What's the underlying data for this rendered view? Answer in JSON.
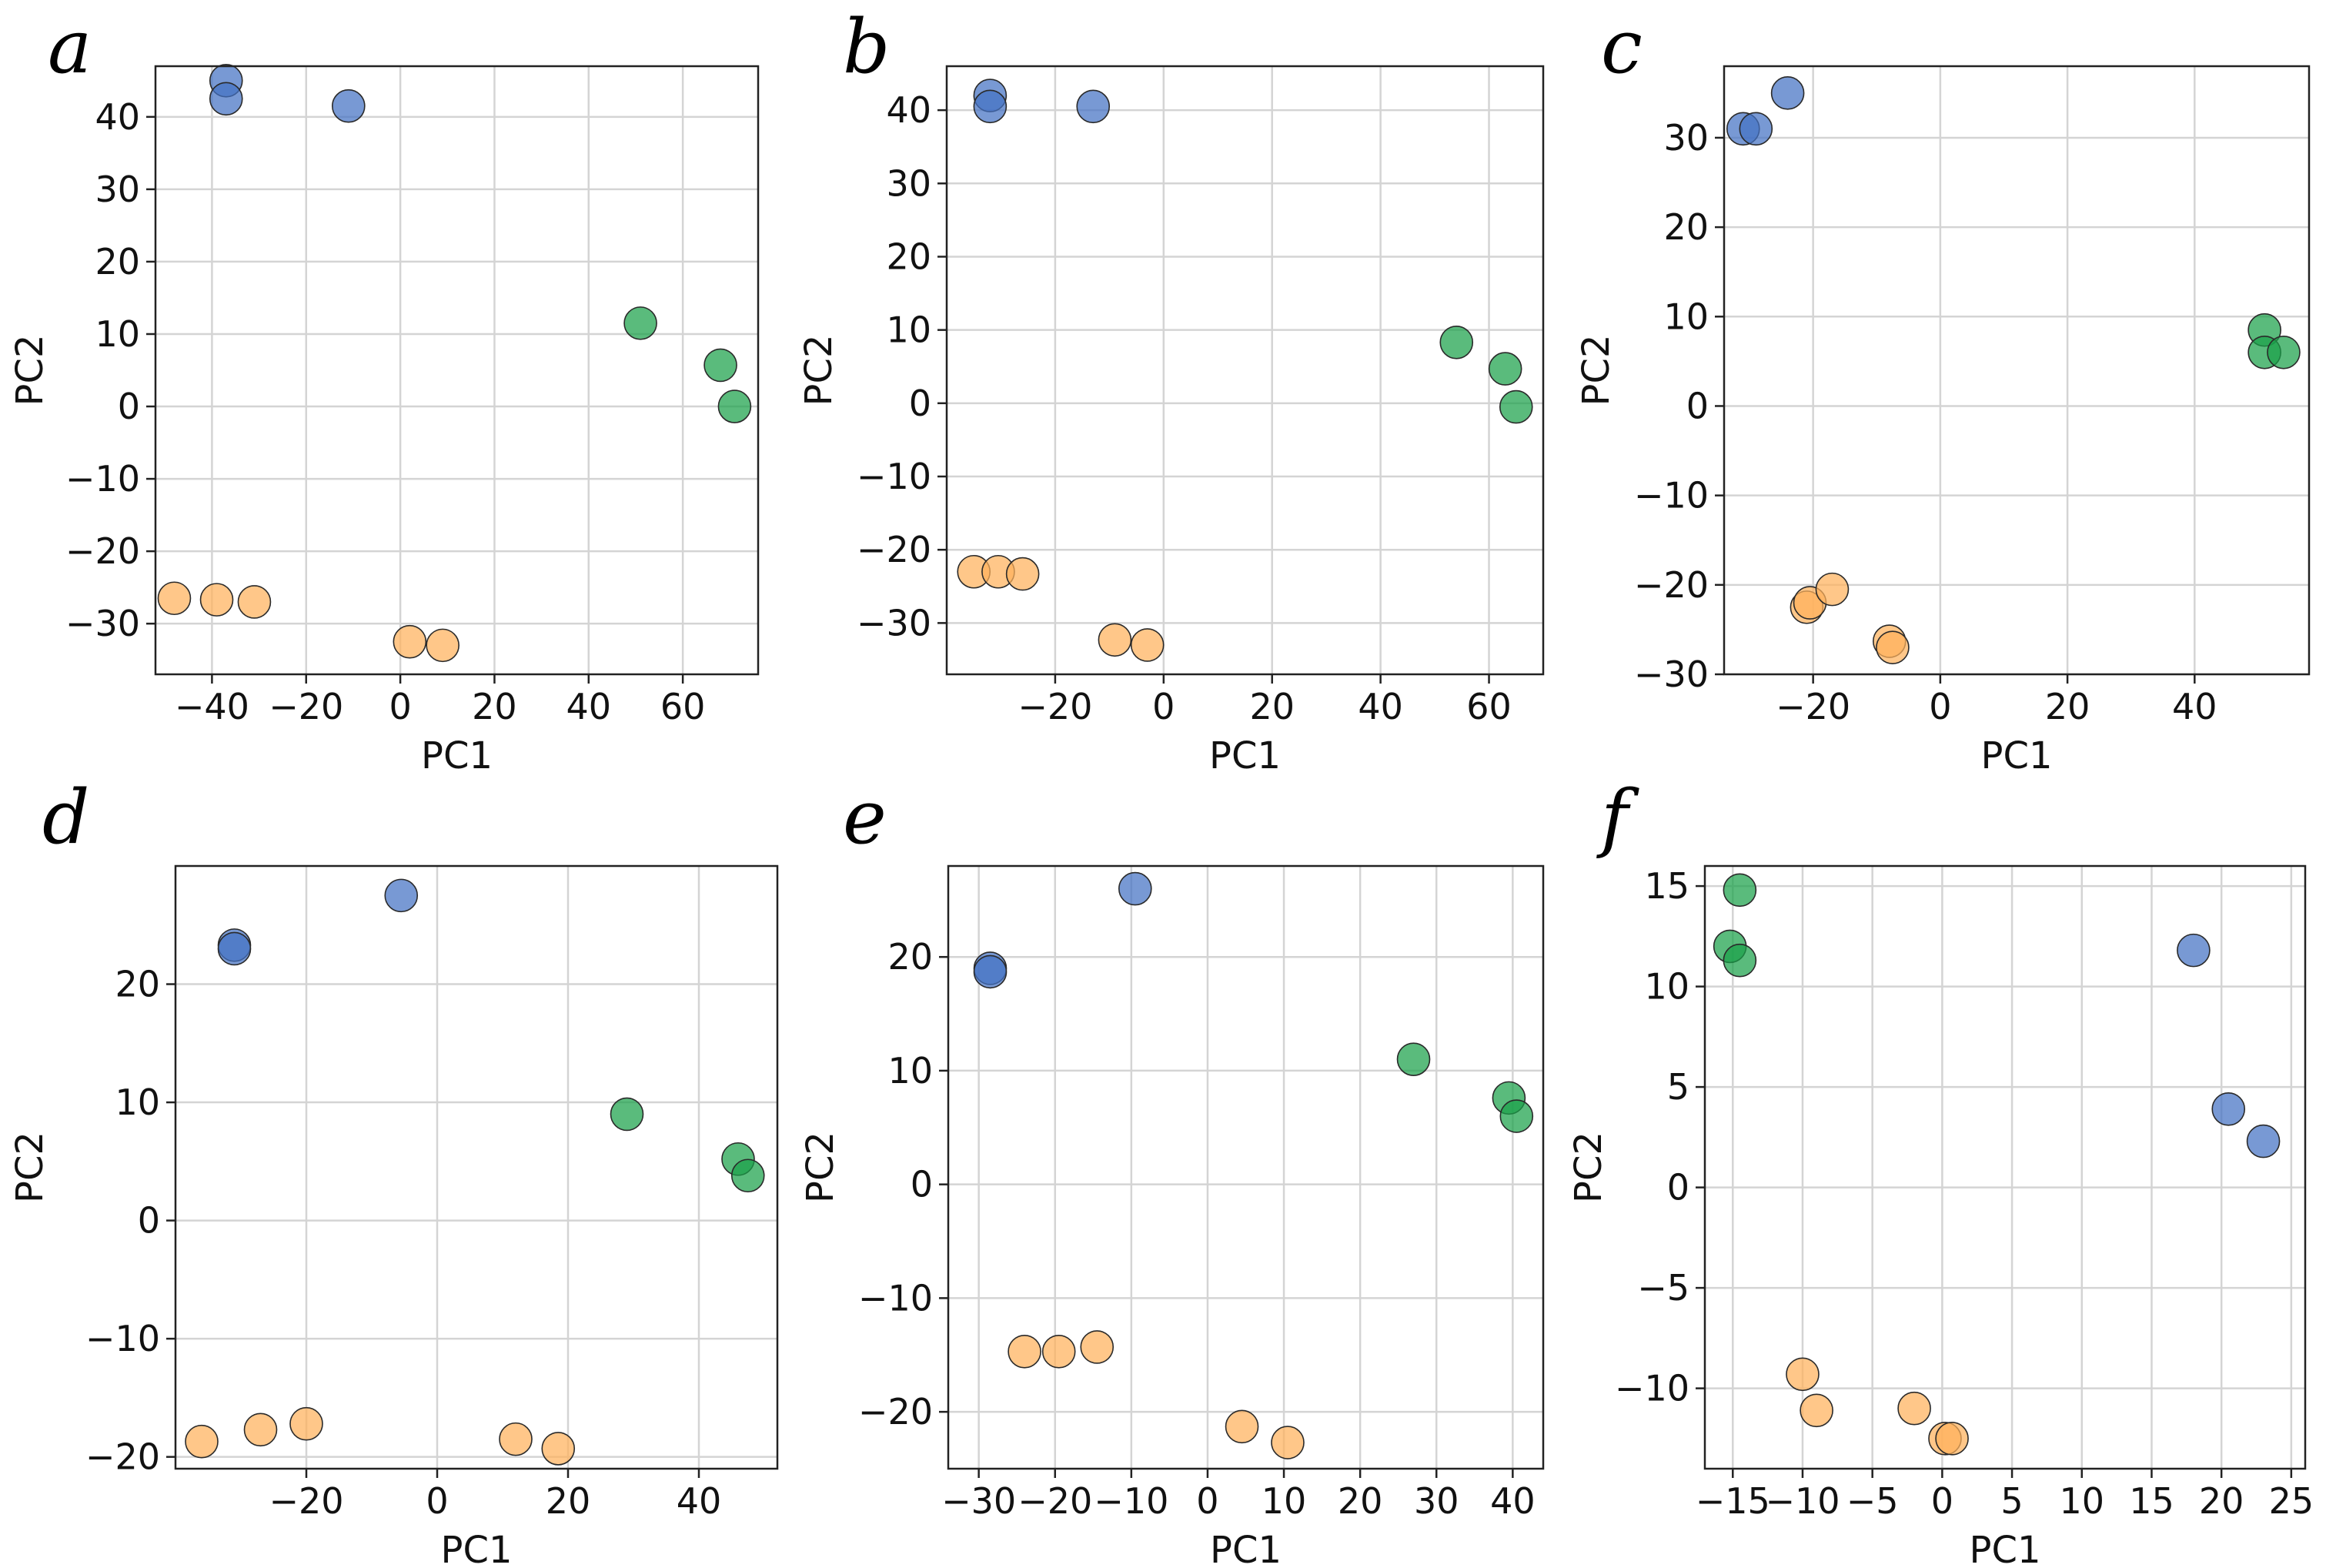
{
  "colors": {
    "blue": "#4472c4",
    "orange": "#ffb15c",
    "green": "#1aa14a"
  },
  "chart_data": [
    {
      "type": "scatter",
      "panel": "a",
      "xlabel": "PC1",
      "ylabel": "PC2",
      "xlim": [
        -52,
        76
      ],
      "ylim": [
        -37,
        47
      ],
      "xticks": [
        -40,
        -20,
        0,
        20,
        40,
        60
      ],
      "yticks": [
        -30,
        -20,
        -10,
        0,
        10,
        20,
        30,
        40
      ],
      "grid": true,
      "series": [
        {
          "name": "blue",
          "color": "#4472c4",
          "points": [
            [
              -37,
              45
            ],
            [
              -37,
              42.5
            ],
            [
              -11,
              41.5
            ]
          ]
        },
        {
          "name": "green",
          "color": "#1aa14a",
          "points": [
            [
              51,
              11.5
            ],
            [
              68,
              5.7
            ],
            [
              71,
              0
            ]
          ]
        },
        {
          "name": "orange",
          "color": "#ffb15c",
          "points": [
            [
              -48,
              -26.5
            ],
            [
              -39,
              -26.7
            ],
            [
              -31,
              -27
            ],
            [
              2,
              -32.5
            ],
            [
              9,
              -33
            ]
          ]
        }
      ]
    },
    {
      "type": "scatter",
      "panel": "b",
      "xlabel": "PC1",
      "ylabel": "PC2",
      "xlim": [
        -40,
        70
      ],
      "ylim": [
        -37,
        46
      ],
      "xticks": [
        -20,
        0,
        20,
        40,
        60
      ],
      "yticks": [
        -30,
        -20,
        -10,
        0,
        10,
        20,
        30,
        40
      ],
      "grid": true,
      "series": [
        {
          "name": "blue",
          "color": "#4472c4",
          "points": [
            [
              -32,
              42
            ],
            [
              -32,
              40.5
            ],
            [
              -13,
              40.5
            ]
          ]
        },
        {
          "name": "green",
          "color": "#1aa14a",
          "points": [
            [
              54,
              8.3
            ],
            [
              63,
              4.7
            ],
            [
              65,
              -0.5
            ]
          ]
        },
        {
          "name": "orange",
          "color": "#ffb15c",
          "points": [
            [
              -35,
              -23
            ],
            [
              -30.5,
              -23
            ],
            [
              -26,
              -23.3
            ],
            [
              -9,
              -32.3
            ],
            [
              -3,
              -33
            ]
          ]
        }
      ]
    },
    {
      "type": "scatter",
      "panel": "c",
      "xlabel": "PC1",
      "ylabel": "PC2",
      "xlim": [
        -34,
        58
      ],
      "ylim": [
        -30,
        38
      ],
      "xticks": [
        -20,
        0,
        20,
        40
      ],
      "yticks": [
        -30,
        -20,
        -10,
        0,
        10,
        20,
        30
      ],
      "grid": true,
      "series": [
        {
          "name": "blue",
          "color": "#4472c4",
          "points": [
            [
              -31,
              31
            ],
            [
              -29,
              31
            ],
            [
              -24,
              35
            ]
          ]
        },
        {
          "name": "green",
          "color": "#1aa14a",
          "points": [
            [
              51,
              8.5
            ],
            [
              51,
              6
            ],
            [
              54,
              6
            ]
          ]
        },
        {
          "name": "orange",
          "color": "#ffb15c",
          "points": [
            [
              -21,
              -22.5
            ],
            [
              -20.5,
              -22
            ],
            [
              -17,
              -20.5
            ],
            [
              -8,
              -26.3
            ],
            [
              -7.5,
              -27
            ]
          ]
        }
      ]
    },
    {
      "type": "scatter",
      "panel": "d",
      "xlabel": "PC1",
      "ylabel": "PC2",
      "xlim": [
        -40,
        52
      ],
      "ylim": [
        -21,
        30
      ],
      "xticks": [
        -20,
        0,
        20,
        40
      ],
      "yticks": [
        -20,
        -10,
        0,
        10,
        20
      ],
      "grid": true,
      "series": [
        {
          "name": "blue",
          "color": "#4472c4",
          "points": [
            [
              -31,
              23.3
            ],
            [
              -31,
              23
            ],
            [
              -5.5,
              27.5
            ]
          ]
        },
        {
          "name": "green",
          "color": "#1aa14a",
          "points": [
            [
              29,
              9
            ],
            [
              46,
              5.2
            ],
            [
              47.5,
              3.8
            ]
          ]
        },
        {
          "name": "orange",
          "color": "#ffb15c",
          "points": [
            [
              -36,
              -18.7
            ],
            [
              -27,
              -17.7
            ],
            [
              -20,
              -17.2
            ],
            [
              12,
              -18.5
            ],
            [
              18.5,
              -19.3
            ]
          ]
        }
      ]
    },
    {
      "type": "scatter",
      "panel": "e",
      "xlabel": "PC1",
      "ylabel": "PC2",
      "xlim": [
        -34,
        44
      ],
      "ylim": [
        -25,
        28
      ],
      "xticks": [
        -30,
        -20,
        -10,
        0,
        10,
        20,
        30,
        40
      ],
      "yticks": [
        -20,
        -10,
        0,
        10,
        20
      ],
      "grid": true,
      "series": [
        {
          "name": "blue",
          "color": "#4472c4",
          "points": [
            [
              -28.5,
              19
            ],
            [
              -28.5,
              18.7
            ],
            [
              -9.5,
              26
            ]
          ]
        },
        {
          "name": "green",
          "color": "#1aa14a",
          "points": [
            [
              27,
              11
            ],
            [
              39.5,
              7.6
            ],
            [
              40.5,
              6
            ]
          ]
        },
        {
          "name": "orange",
          "color": "#ffb15c",
          "points": [
            [
              -24,
              -14.7
            ],
            [
              -19.5,
              -14.7
            ],
            [
              -14.5,
              -14.3
            ],
            [
              4.5,
              -21.3
            ],
            [
              10.5,
              -22.7
            ]
          ]
        }
      ]
    },
    {
      "type": "scatter",
      "panel": "f",
      "xlabel": "PC1",
      "ylabel": "PC2",
      "xlim": [
        -17,
        26
      ],
      "ylim": [
        -14,
        16
      ],
      "xticks": [
        -15,
        -10,
        -5,
        0,
        5,
        10,
        15,
        20,
        25
      ],
      "yticks": [
        -10,
        -5,
        0,
        5,
        10,
        15
      ],
      "grid": true,
      "series": [
        {
          "name": "blue",
          "color": "#4472c4",
          "points": [
            [
              18,
              11.8
            ],
            [
              20.5,
              3.9
            ],
            [
              23,
              2.3
            ]
          ]
        },
        {
          "name": "green",
          "color": "#1aa14a",
          "points": [
            [
              -14.5,
              14.8
            ],
            [
              -15.2,
              12
            ],
            [
              -14.5,
              11.3
            ]
          ]
        },
        {
          "name": "orange",
          "color": "#ffb15c",
          "points": [
            [
              -10,
              -9.3
            ],
            [
              -9,
              -11.1
            ],
            [
              -2,
              -11
            ],
            [
              0.2,
              -12.5
            ],
            [
              0.7,
              -12.5
            ]
          ]
        }
      ]
    }
  ]
}
